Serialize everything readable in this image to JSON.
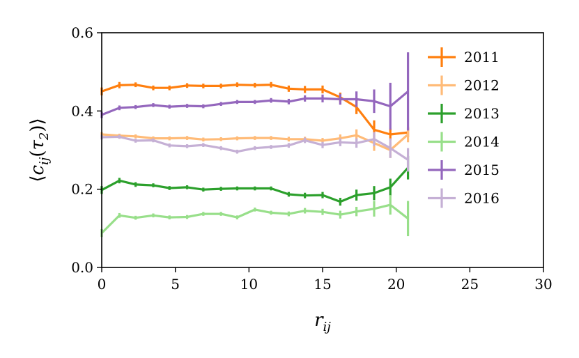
{
  "chart_data": {
    "type": "line",
    "xlabel": "r_ij",
    "ylabel": "⟨c_ij(τ_2)⟩",
    "xlim": [
      0,
      30
    ],
    "ylim": [
      0,
      0.6
    ],
    "xticks": [
      "0",
      "5",
      "10",
      "15",
      "20",
      "25",
      "30"
    ],
    "yticks": [
      "0.0",
      "0.2",
      "0.4",
      "0.6"
    ],
    "grid": false,
    "legend_position": "right",
    "x": [
      0,
      1.2,
      2.3,
      3.5,
      4.6,
      5.8,
      6.9,
      8.1,
      9.2,
      10.4,
      11.5,
      12.7,
      13.8,
      15.0,
      16.2,
      17.3,
      18.5,
      19.6,
      20.8
    ],
    "series": [
      {
        "name": "2011",
        "color": "#ff7f0e",
        "values": [
          0.45,
          0.466,
          0.467,
          0.459,
          0.459,
          0.465,
          0.464,
          0.464,
          0.467,
          0.466,
          0.467,
          0.457,
          0.455,
          0.455,
          0.435,
          0.41,
          0.352,
          0.34,
          0.345
        ],
        "errors": [
          0.01,
          0.008,
          0.006,
          0.006,
          0.006,
          0.006,
          0.006,
          0.006,
          0.006,
          0.006,
          0.007,
          0.008,
          0.009,
          0.01,
          0.012,
          0.018,
          0.024,
          0.015,
          0.012
        ]
      },
      {
        "name": "2012",
        "color": "#ffbb78",
        "values": [
          0.34,
          0.337,
          0.335,
          0.33,
          0.33,
          0.331,
          0.327,
          0.328,
          0.33,
          0.331,
          0.331,
          0.328,
          0.328,
          0.324,
          0.33,
          0.338,
          0.318,
          0.3,
          0.34
        ],
        "errors": [
          0.006,
          0.005,
          0.005,
          0.005,
          0.005,
          0.005,
          0.005,
          0.005,
          0.005,
          0.005,
          0.005,
          0.006,
          0.006,
          0.007,
          0.01,
          0.015,
          0.02,
          0.02,
          0.02
        ]
      },
      {
        "name": "2013",
        "color": "#2ca02c",
        "values": [
          0.198,
          0.222,
          0.212,
          0.21,
          0.203,
          0.205,
          0.199,
          0.201,
          0.202,
          0.202,
          0.202,
          0.187,
          0.184,
          0.185,
          0.168,
          0.185,
          0.19,
          0.205,
          0.255
        ],
        "errors": [
          0.01,
          0.007,
          0.006,
          0.005,
          0.005,
          0.005,
          0.005,
          0.005,
          0.005,
          0.005,
          0.005,
          0.006,
          0.007,
          0.008,
          0.01,
          0.014,
          0.018,
          0.022,
          0.03
        ]
      },
      {
        "name": "2014",
        "color": "#98df8a",
        "values": [
          0.088,
          0.133,
          0.127,
          0.133,
          0.128,
          0.129,
          0.137,
          0.137,
          0.128,
          0.148,
          0.14,
          0.137,
          0.145,
          0.142,
          0.135,
          0.143,
          0.15,
          0.16,
          0.125
        ],
        "errors": [
          0.01,
          0.006,
          0.005,
          0.005,
          0.005,
          0.005,
          0.005,
          0.005,
          0.005,
          0.005,
          0.005,
          0.006,
          0.007,
          0.008,
          0.01,
          0.012,
          0.02,
          0.025,
          0.045
        ]
      },
      {
        "name": "2015",
        "color": "#9467bd",
        "values": [
          0.39,
          0.408,
          0.41,
          0.415,
          0.411,
          0.413,
          0.412,
          0.418,
          0.423,
          0.423,
          0.427,
          0.424,
          0.432,
          0.432,
          0.43,
          0.43,
          0.425,
          0.412,
          0.45
        ],
        "errors": [
          0.008,
          0.006,
          0.005,
          0.005,
          0.005,
          0.005,
          0.005,
          0.005,
          0.005,
          0.005,
          0.006,
          0.007,
          0.008,
          0.01,
          0.014,
          0.02,
          0.03,
          0.06,
          0.1
        ]
      },
      {
        "name": "2016",
        "color": "#c5b0d5",
        "values": [
          0.333,
          0.334,
          0.324,
          0.325,
          0.312,
          0.31,
          0.313,
          0.305,
          0.296,
          0.305,
          0.308,
          0.312,
          0.325,
          0.313,
          0.32,
          0.318,
          0.328,
          0.305,
          0.275
        ],
        "errors": [
          0.006,
          0.005,
          0.005,
          0.005,
          0.005,
          0.005,
          0.005,
          0.005,
          0.005,
          0.005,
          0.005,
          0.006,
          0.007,
          0.008,
          0.01,
          0.012,
          0.018,
          0.025,
          0.03
        ]
      }
    ]
  }
}
